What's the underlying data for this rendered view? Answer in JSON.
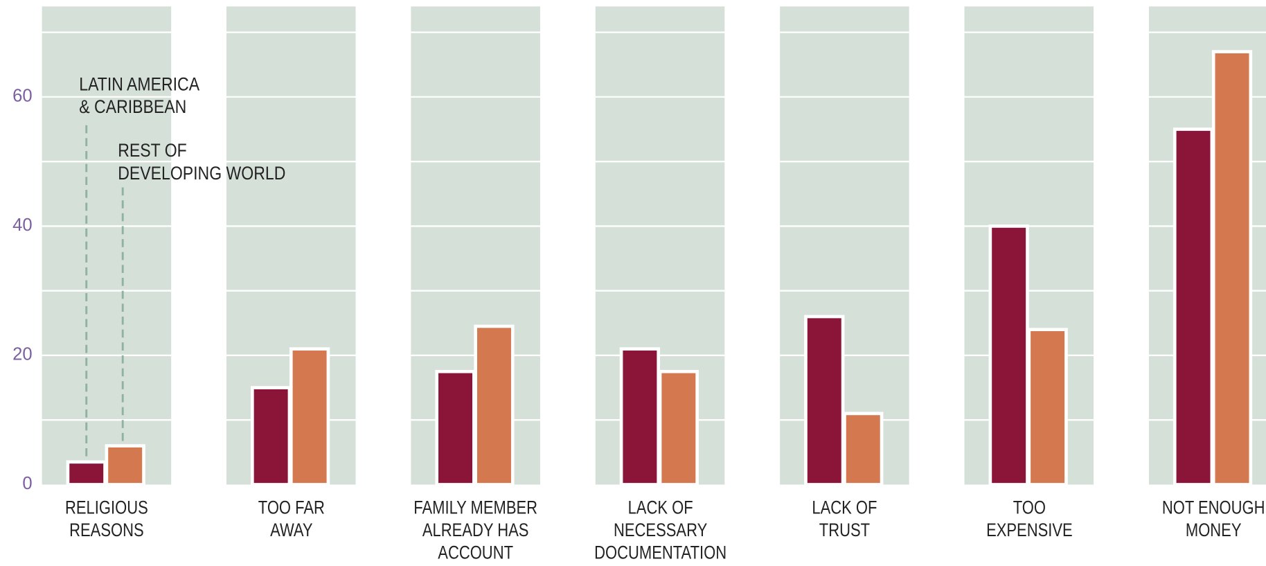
{
  "chart_data": {
    "type": "bar",
    "categories": [
      "RELIGIOUS\nREASONS",
      "TOO FAR\nAWAY",
      "FAMILY MEMBER\nALREADY HAS\nACCOUNT",
      "LACK OF\nNECESSARY\nDOCUMENTATION",
      "LACK OF\nTRUST",
      "TOO\nEXPENSIVE",
      "NOT ENOUGH\nMONEY"
    ],
    "series": [
      {
        "name": "LATIN AMERICA\n& CARIBBEAN",
        "color": "#8b1538",
        "values": [
          3.5,
          15,
          17.5,
          21,
          26,
          40,
          55
        ]
      },
      {
        "name": "REST OF\nDEVELOPING WORLD",
        "color": "#d4784f",
        "values": [
          6,
          21,
          24.5,
          17.5,
          11,
          24,
          67
        ]
      }
    ],
    "ylim": [
      0,
      74
    ],
    "yticks": [
      0,
      20,
      40,
      60
    ],
    "grid_lines": [
      10,
      20,
      30,
      40,
      50,
      60,
      70
    ],
    "grid": true,
    "panel_color": "#d5e0d8",
    "tick_color": "#7b5fa0"
  }
}
